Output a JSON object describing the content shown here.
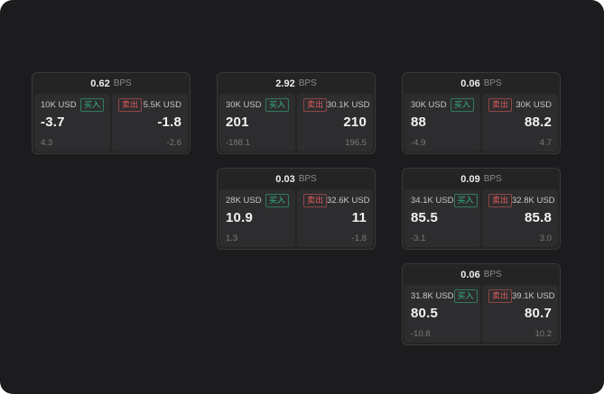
{
  "labels": {
    "buy": "买入",
    "sell": "卖出",
    "bps": "BPS"
  },
  "colors": {
    "buy": "#35b97c",
    "sell": "#e25b5b",
    "background": "#1c1c1e",
    "card": "#242425",
    "panel": "#2d2d2f"
  },
  "cards": [
    {
      "spread_bps": "0.62",
      "buy": {
        "amount": "10K USD",
        "price": "-3.7",
        "change": "4.3"
      },
      "sell": {
        "amount": "5.5K USD",
        "price": "-1.8",
        "change": "-2.6"
      }
    },
    {
      "spread_bps": "2.92",
      "buy": {
        "amount": "30K USD",
        "price": "201",
        "change": "-188.1"
      },
      "sell": {
        "amount": "30.1K USD",
        "price": "210",
        "change": "196.5"
      }
    },
    {
      "spread_bps": "0.06",
      "buy": {
        "amount": "30K USD",
        "price": "88",
        "change": "-4.9"
      },
      "sell": {
        "amount": "30K USD",
        "price": "88.2",
        "change": "4.7"
      }
    },
    {
      "spread_bps": "0.03",
      "buy": {
        "amount": "28K USD",
        "price": "10.9",
        "change": "1.3"
      },
      "sell": {
        "amount": "32.6K USD",
        "price": "11",
        "change": "-1.8"
      }
    },
    {
      "spread_bps": "0.09",
      "buy": {
        "amount": "34.1K USD",
        "price": "85.5",
        "change": "-3.1"
      },
      "sell": {
        "amount": "32.8K USD",
        "price": "85.8",
        "change": "3.0"
      }
    },
    {
      "spread_bps": "0.06",
      "buy": {
        "amount": "31.8K USD",
        "price": "80.5",
        "change": "-10.8"
      },
      "sell": {
        "amount": "39.1K USD",
        "price": "80.7",
        "change": "10.2"
      }
    }
  ]
}
